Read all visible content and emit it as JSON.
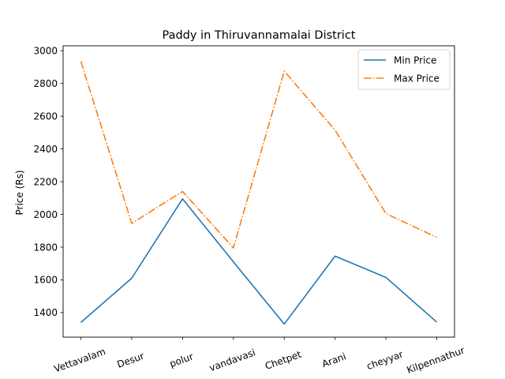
{
  "chart_data": {
    "type": "line",
    "title": "Paddy in Thiruvannamalai District",
    "xlabel": "",
    "ylabel": "Price (Rs)",
    "categories": [
      "Vettavalam",
      "Desur",
      "polur",
      "vandavasi",
      "Chetpet",
      "Arani",
      "cheyyar",
      "Kilpennathur"
    ],
    "series": [
      {
        "name": "Min Price",
        "values": [
          1340,
          1610,
          2095,
          1710,
          1330,
          1745,
          1615,
          1342
        ],
        "color": "#1f77b4",
        "linestyle": "solid"
      },
      {
        "name": "Max Price",
        "values": [
          2935,
          1945,
          2140,
          1795,
          2875,
          2515,
          2005,
          1860
        ],
        "color": "#ff7f0e",
        "linestyle": "dashdot"
      }
    ],
    "ylim": [
      1250,
      3030
    ],
    "yticks": [
      1400,
      1600,
      1800,
      2000,
      2200,
      2400,
      2600,
      2800,
      3000
    ],
    "grid": false,
    "legend_position": "top-right"
  }
}
